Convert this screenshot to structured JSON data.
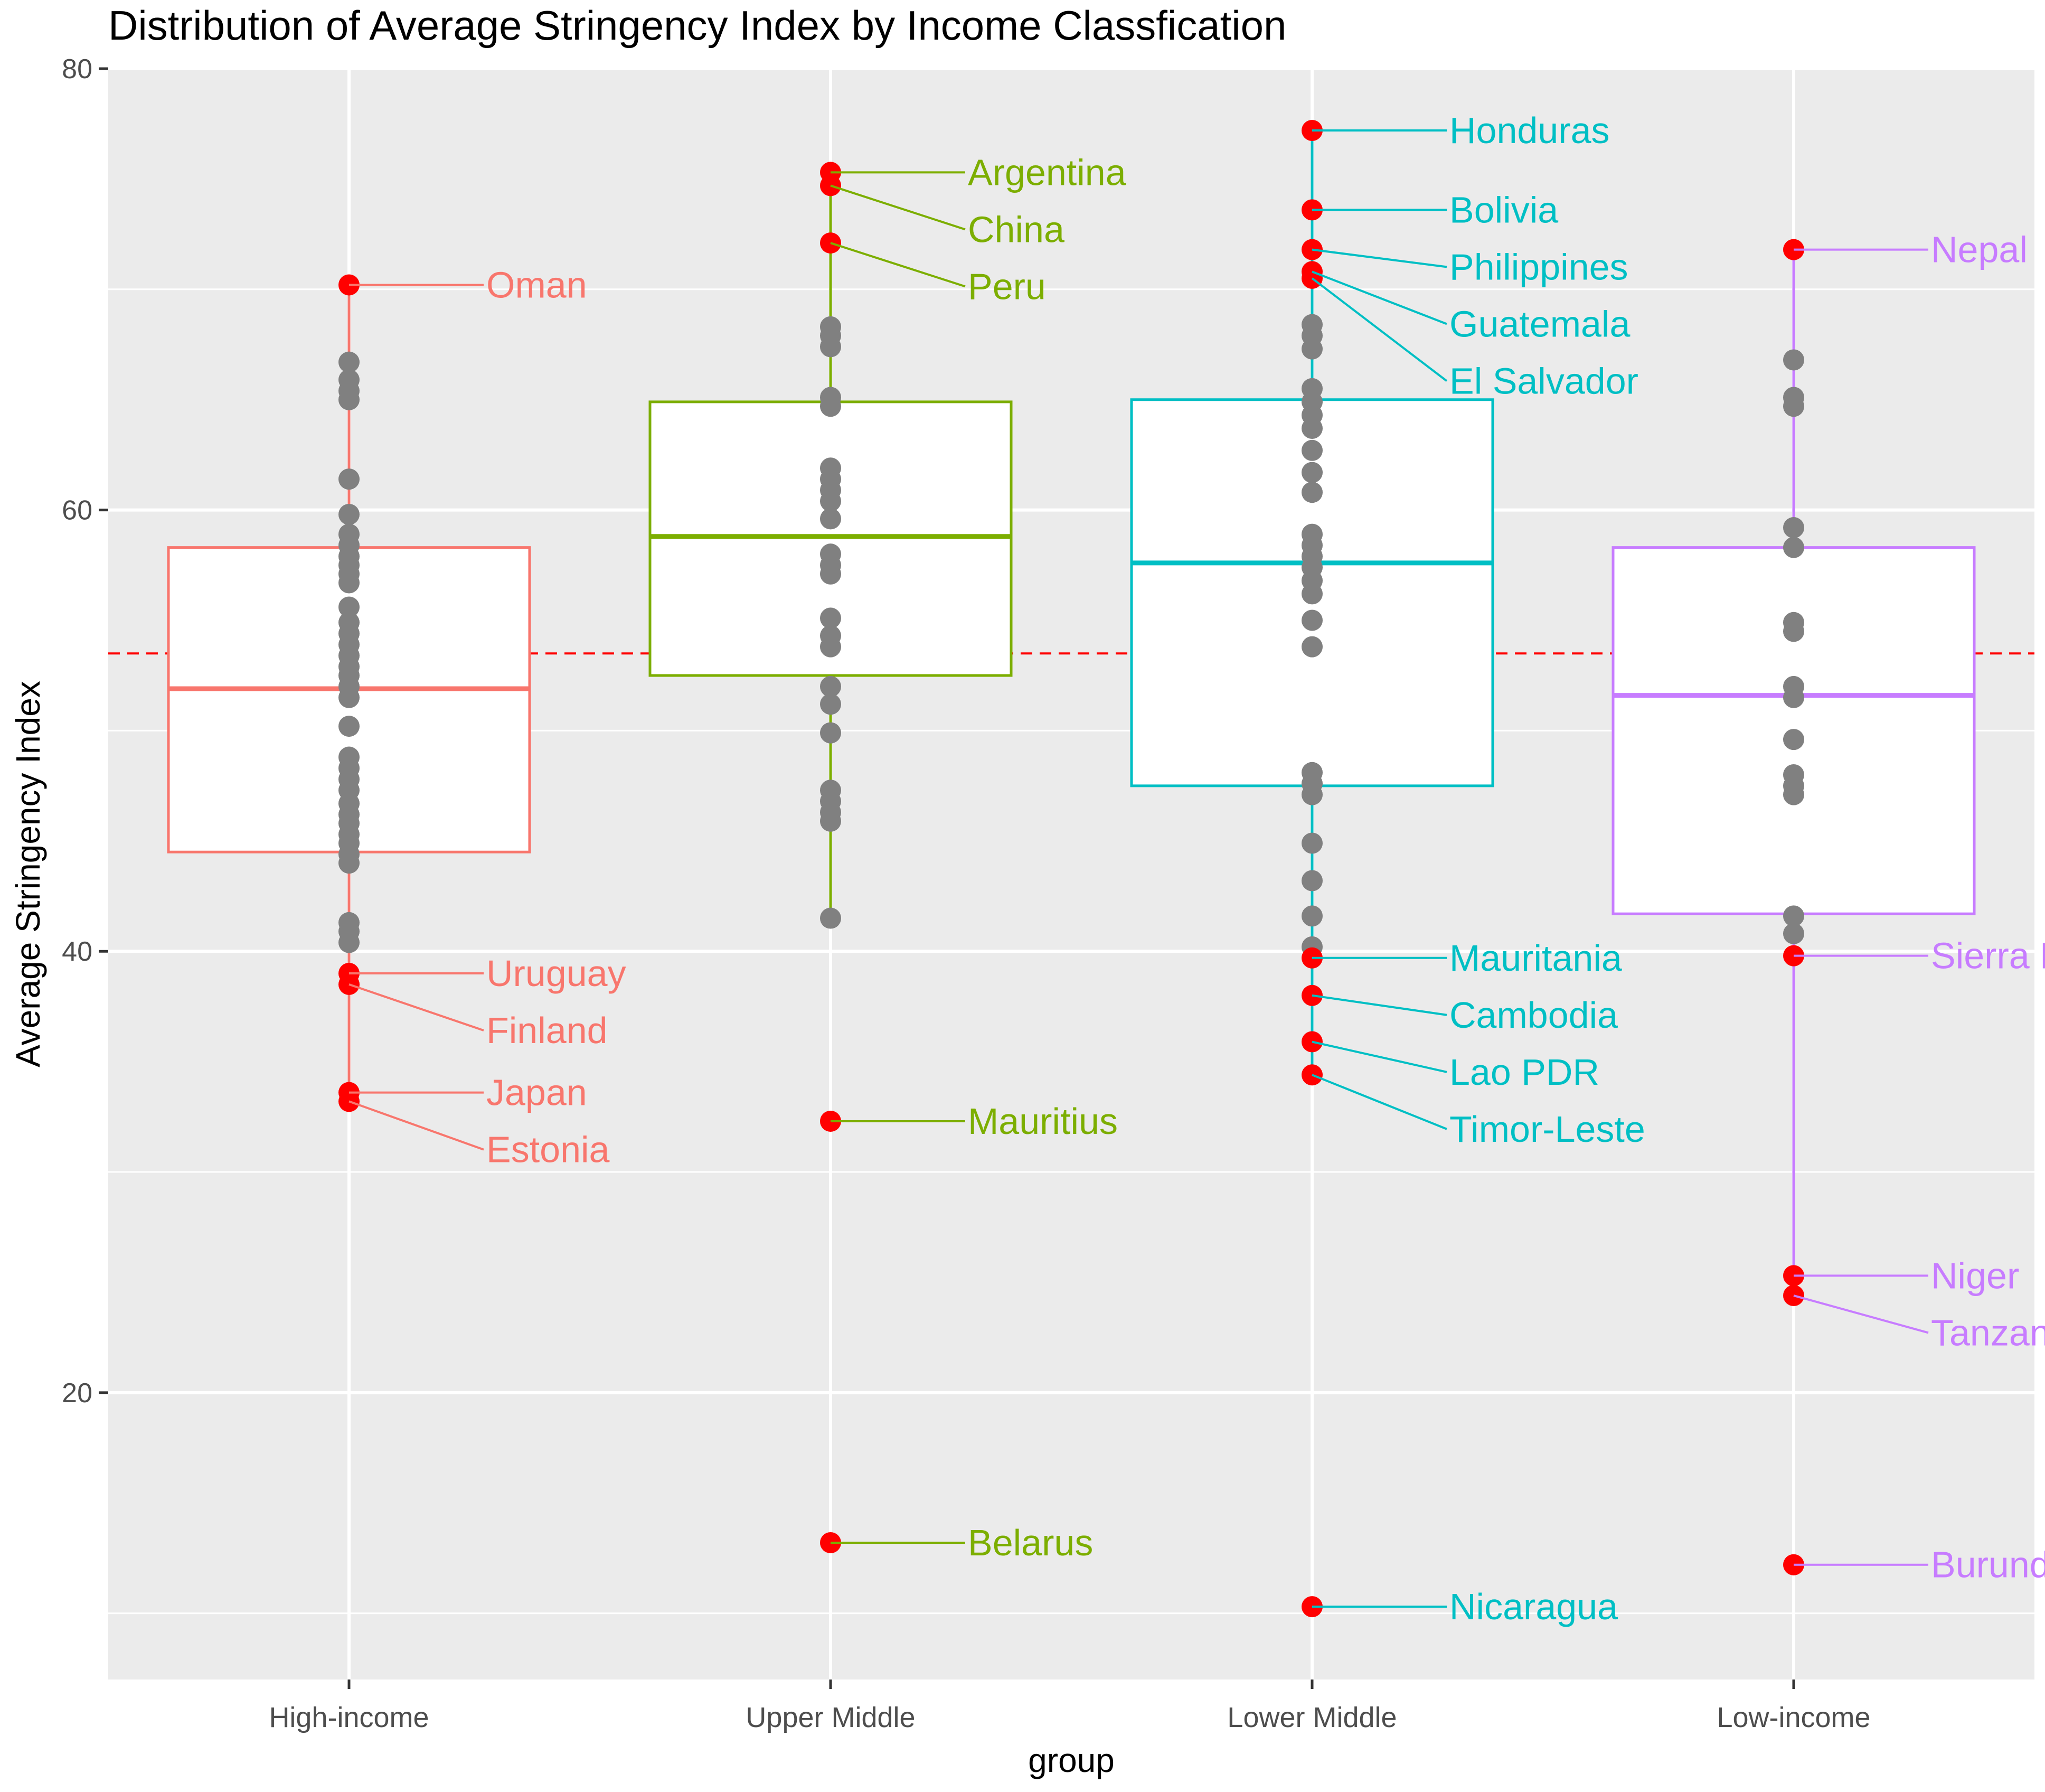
{
  "chart_data": {
    "type": "boxplot",
    "title": "Distribution of Average Stringency Index by Income Classfication",
    "xlabel": "group",
    "ylabel": "Average Stringency Index",
    "ylim": [
      7,
      80
    ],
    "yticks": [
      20,
      40,
      60,
      80
    ],
    "reference_line": {
      "value": 53.5,
      "color": "#FF0000",
      "style": "dashed"
    },
    "outlier_color": "#FF0000",
    "point_color": "#808080",
    "groups": [
      {
        "name": "High-income",
        "color": "#F8766D",
        "box": {
          "whisker_low": 33.2,
          "q1": 44.5,
          "median": 51.9,
          "q3": 58.3,
          "whisker_high": 70.0
        },
        "points": [
          66.7,
          65.9,
          65.4,
          65.0,
          61.4,
          59.8,
          58.9,
          58.4,
          57.9,
          57.5,
          57.1,
          56.7,
          55.6,
          54.9,
          54.4,
          53.9,
          53.4,
          52.9,
          52.5,
          52.0,
          51.5,
          50.2,
          48.8,
          48.3,
          47.8,
          47.3,
          46.7,
          46.2,
          45.8,
          45.3,
          44.9,
          44.4,
          44.0,
          41.3,
          40.9,
          40.4
        ],
        "outliers": [
          {
            "label": "Oman",
            "value": 70.2
          },
          {
            "label": "Uruguay",
            "value": 39.0
          },
          {
            "label": "Finland",
            "value": 38.5
          },
          {
            "label": "Japan",
            "value": 33.6
          },
          {
            "label": "Estonia",
            "value": 33.2
          }
        ]
      },
      {
        "name": "Upper Middle",
        "color": "#7CAE00",
        "box": {
          "whisker_low": 41.5,
          "q1": 52.5,
          "median": 58.8,
          "q3": 64.9,
          "whisker_high": 75.3
        },
        "points": [
          68.3,
          67.9,
          67.4,
          65.1,
          64.7,
          61.9,
          61.4,
          60.9,
          60.4,
          59.6,
          58.0,
          57.5,
          57.1,
          55.1,
          54.3,
          53.8,
          52.0,
          51.2,
          49.9,
          47.3,
          46.8,
          46.3,
          45.9,
          41.5
        ],
        "outliers": [
          {
            "label": "Argentina",
            "value": 75.3
          },
          {
            "label": "China",
            "value": 74.7
          },
          {
            "label": "Peru",
            "value": 72.1
          },
          {
            "label": "Mauritius",
            "value": 32.3
          },
          {
            "label": "Belarus",
            "value": 13.2
          }
        ]
      },
      {
        "name": "Lower Middle",
        "color": "#00BFC4",
        "box": {
          "whisker_low": 34.3,
          "q1": 47.5,
          "median": 57.6,
          "q3": 65.0,
          "whisker_high": 77.2
        },
        "points": [
          68.4,
          67.9,
          67.3,
          65.5,
          64.9,
          64.3,
          63.7,
          62.7,
          61.7,
          60.8,
          58.9,
          58.4,
          57.9,
          57.4,
          56.8,
          56.2,
          55.0,
          53.8,
          48.1,
          47.6,
          47.1,
          44.9,
          43.2,
          41.6,
          40.2
        ],
        "outliers": [
          {
            "label": "Honduras",
            "value": 77.2
          },
          {
            "label": "Bolivia",
            "value": 73.6
          },
          {
            "label": "Philippines",
            "value": 71.8
          },
          {
            "label": "Guatemala",
            "value": 70.8
          },
          {
            "label": "El Salvador",
            "value": 70.5
          },
          {
            "label": "Mauritania",
            "value": 39.7
          },
          {
            "label": "Cambodia",
            "value": 38.0
          },
          {
            "label": "Lao PDR",
            "value": 35.9
          },
          {
            "label": "Timor-Leste",
            "value": 34.4
          },
          {
            "label": "Nicaragua",
            "value": 10.3
          }
        ]
      },
      {
        "name": "Low-income",
        "color": "#C77CFF",
        "box": {
          "whisker_low": 25.3,
          "q1": 41.7,
          "median": 51.6,
          "q3": 58.3,
          "whisker_high": 71.8
        },
        "points": [
          66.8,
          65.1,
          64.7,
          59.2,
          58.3,
          54.9,
          54.5,
          52.0,
          51.5,
          49.6,
          48.0,
          47.5,
          47.1,
          41.6,
          40.8
        ],
        "outliers": [
          {
            "label": "Nepal",
            "value": 71.8
          },
          {
            "label": "Sierra Leone",
            "value": 39.8
          },
          {
            "label": "Niger",
            "value": 25.3
          },
          {
            "label": "Tanzania",
            "value": 24.4
          },
          {
            "label": "Burundi",
            "value": 12.2
          }
        ]
      }
    ]
  }
}
